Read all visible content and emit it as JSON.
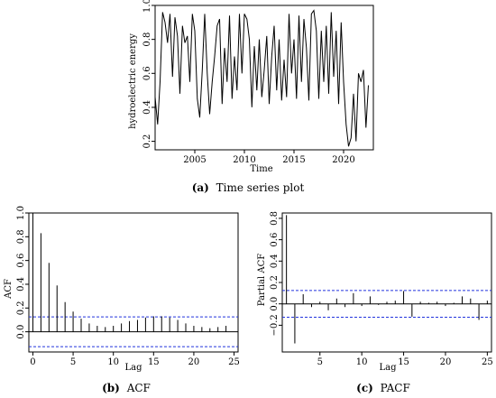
{
  "chart_data": [
    {
      "type": "line",
      "caption_label": "(a)",
      "caption_text": "Time series plot",
      "xlabel": "Time",
      "ylabel": "hydroelectric energy",
      "xlim": [
        2001,
        2023
      ],
      "ylim": [
        0.15,
        1.0
      ],
      "x_ticks": [
        2005,
        2010,
        2015,
        2020
      ],
      "y_ticks": [
        0.2,
        0.4,
        0.6,
        0.8,
        1.0
      ],
      "y_tick_labels": [
        "0.2",
        "0.4",
        "0.6",
        "0.8",
        "1.0"
      ],
      "series": [
        {
          "x": [
            2001.0,
            2001.25,
            2001.5,
            2001.75,
            2002.0,
            2002.25,
            2002.5,
            2002.75,
            2003.0,
            2003.25,
            2003.5,
            2003.75,
            2004.0,
            2004.25,
            2004.5,
            2004.75,
            2005.0,
            2005.25,
            2005.5,
            2005.75,
            2006.0,
            2006.25,
            2006.5,
            2006.75,
            2007.0,
            2007.25,
            2007.5,
            2007.75,
            2008.0,
            2008.25,
            2008.5,
            2008.75,
            2009.0,
            2009.25,
            2009.5,
            2009.75,
            2010.0,
            2010.25,
            2010.5,
            2010.75,
            2011.0,
            2011.25,
            2011.5,
            2011.75,
            2012.0,
            2012.25,
            2012.5,
            2012.75,
            2013.0,
            2013.25,
            2013.5,
            2013.75,
            2014.0,
            2014.25,
            2014.5,
            2014.75,
            2015.0,
            2015.25,
            2015.5,
            2015.75,
            2016.0,
            2016.25,
            2016.5,
            2016.75,
            2017.0,
            2017.25,
            2017.5,
            2017.75,
            2018.0,
            2018.25,
            2018.5,
            2018.75,
            2019.0,
            2019.25,
            2019.5,
            2019.75,
            2020.0,
            2020.25,
            2020.5,
            2020.75,
            2021.0,
            2021.25,
            2021.5,
            2021.75,
            2022.0,
            2022.25,
            2022.5
          ],
          "values": [
            0.46,
            0.3,
            0.55,
            0.96,
            0.9,
            0.78,
            0.95,
            0.58,
            0.93,
            0.82,
            0.48,
            0.88,
            0.78,
            0.82,
            0.55,
            0.95,
            0.85,
            0.45,
            0.34,
            0.62,
            0.95,
            0.6,
            0.36,
            0.55,
            0.7,
            0.88,
            0.92,
            0.42,
            0.75,
            0.55,
            0.94,
            0.45,
            0.7,
            0.5,
            0.95,
            0.6,
            0.95,
            0.92,
            0.8,
            0.4,
            0.76,
            0.5,
            0.8,
            0.46,
            0.62,
            0.82,
            0.42,
            0.7,
            0.88,
            0.5,
            0.8,
            0.44,
            0.68,
            0.46,
            0.95,
            0.6,
            0.8,
            0.45,
            0.94,
            0.55,
            0.92,
            0.75,
            0.44,
            0.95,
            0.97,
            0.85,
            0.45,
            0.85,
            0.55,
            0.88,
            0.48,
            0.96,
            0.58,
            0.85,
            0.42,
            0.9,
            0.55,
            0.3,
            0.17,
            0.22,
            0.48,
            0.2,
            0.6,
            0.55,
            0.62,
            0.28,
            0.53
          ]
        }
      ]
    },
    {
      "type": "bar",
      "caption_label": "(b)",
      "caption_text": "ACF",
      "xlabel": "Lag",
      "ylabel": "ACF",
      "xlim": [
        -0.5,
        25.5
      ],
      "ylim": [
        -0.17,
        1.0
      ],
      "x_ticks": [
        0,
        5,
        10,
        15,
        20,
        25
      ],
      "y_ticks": [
        0.0,
        0.2,
        0.4,
        0.6,
        0.8,
        1.0
      ],
      "y_tick_labels": [
        "0.0",
        "0.2",
        "0.4",
        "0.6",
        "0.8",
        "1.0"
      ],
      "conf_bound": 0.125,
      "lags": [
        0,
        1,
        2,
        3,
        4,
        5,
        6,
        7,
        8,
        9,
        10,
        11,
        12,
        13,
        14,
        15,
        16,
        17,
        18,
        19,
        20,
        21,
        22,
        23,
        24
      ],
      "values": [
        1.0,
        0.83,
        0.58,
        0.39,
        0.25,
        0.17,
        0.11,
        0.07,
        0.05,
        0.04,
        0.05,
        0.07,
        0.09,
        0.1,
        0.12,
        0.13,
        0.13,
        0.12,
        0.1,
        0.07,
        0.05,
        0.04,
        0.03,
        0.04,
        0.05
      ]
    },
    {
      "type": "bar",
      "caption_label": "(c)",
      "caption_text": "PACF",
      "xlabel": "Lag",
      "ylabel": "Partial ACF",
      "xlim": [
        0.5,
        25.5
      ],
      "ylim": [
        -0.45,
        0.85
      ],
      "x_ticks": [
        5,
        10,
        15,
        20,
        25
      ],
      "y_ticks": [
        -0.2,
        0.0,
        0.2,
        0.4,
        0.6,
        0.8
      ],
      "y_tick_labels": [
        "−0.2",
        "0.0",
        "0.2",
        "0.4",
        "0.6",
        "0.8"
      ],
      "conf_bound": 0.125,
      "lags": [
        1,
        2,
        3,
        4,
        5,
        6,
        7,
        8,
        9,
        10,
        11,
        12,
        13,
        14,
        15,
        16,
        17,
        18,
        19,
        20,
        21,
        22,
        23,
        24,
        25
      ],
      "values": [
        0.83,
        -0.37,
        0.09,
        -0.03,
        0.02,
        -0.06,
        0.05,
        -0.03,
        0.1,
        -0.02,
        0.07,
        -0.01,
        0.02,
        0.03,
        0.12,
        -0.12,
        0.02,
        0.01,
        0.02,
        -0.02,
        0.01,
        0.07,
        0.05,
        -0.15,
        0.03
      ]
    }
  ]
}
